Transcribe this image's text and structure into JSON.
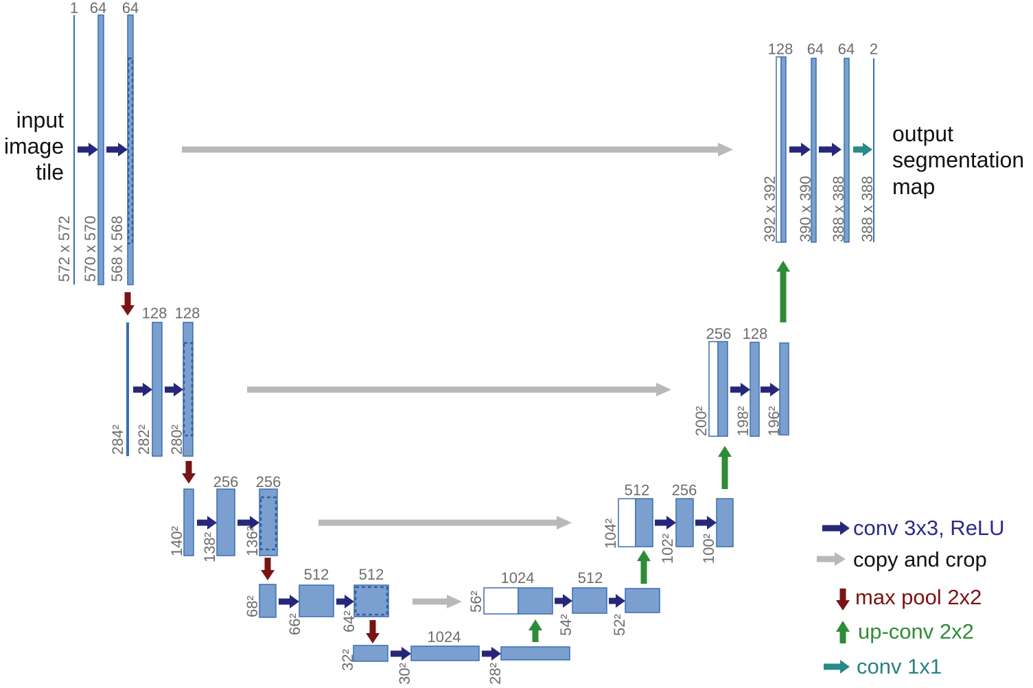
{
  "input_text": [
    "input",
    "image",
    "tile"
  ],
  "output_text": [
    "output",
    "segmentation",
    "map"
  ],
  "channel_labels": [
    "1",
    "64",
    "64",
    "128",
    "128",
    "256",
    "256",
    "512",
    "512",
    "1024",
    "1024",
    "512",
    "512",
    "256",
    "256",
    "128",
    "128",
    "64",
    "64",
    "2"
  ],
  "size_labels": [
    "572 x 572",
    "570 x 570",
    "568 x 568",
    "284²",
    "282²",
    "280²",
    "140²",
    "138²",
    "136²",
    "68²",
    "66²",
    "64²",
    "32²",
    "30²",
    "28²",
    "56²",
    "54²",
    "52²",
    "104²",
    "102²",
    "100²",
    "200²",
    "198²",
    "196²",
    "392 x 392",
    "390 x 390",
    "388 x 388",
    "388 x 388"
  ],
  "legend": [
    {
      "label": "conv 3x3, ReLU",
      "icon": "right-arrow-icon",
      "color": "#27277a"
    },
    {
      "label": "copy and crop",
      "icon": "right-arrow-icon",
      "color": "#b9b9b9"
    },
    {
      "label": "max pool 2x2",
      "icon": "down-arrow-icon",
      "color": "#7a1414"
    },
    {
      "label": "up-conv 2x2",
      "icon": "up-arrow-icon",
      "color": "#2e8b37"
    },
    {
      "label": "conv 1x1",
      "icon": "right-arrow-icon",
      "color": "#2a8a86"
    }
  ],
  "colors": {
    "feature_map_fill": "#7ba0d0",
    "feature_map_stroke": "#3a6db0",
    "conv": "#27277a",
    "copy": "#b9b9b9",
    "maxpool": "#7a1414",
    "upconv": "#2e8b37",
    "conv1x1": "#2a8a86",
    "legend_text_conv": "#2b2b85",
    "legend_text_copy": "#111111",
    "legend_text_maxpool": "#7a1414",
    "legend_text_upconv": "#2e8b37",
    "legend_text_conv1x1": "#2a8080"
  }
}
